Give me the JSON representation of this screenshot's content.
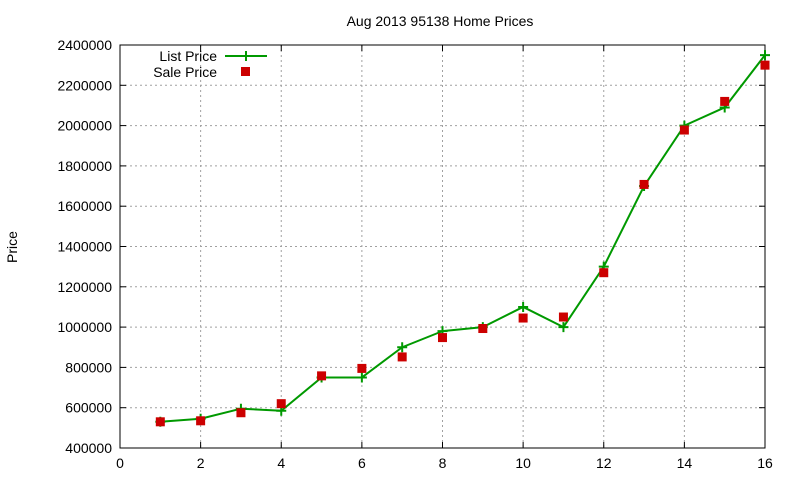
{
  "chart_data": {
    "type": "line",
    "title": "Aug 2013 95138 Home Prices",
    "xlabel": "",
    "ylabel": "Price",
    "xlim": [
      0,
      16
    ],
    "ylim": [
      400000,
      2400000
    ],
    "x_ticks": [
      0,
      2,
      4,
      6,
      8,
      10,
      12,
      14,
      16
    ],
    "y_ticks": [
      400000,
      600000,
      800000,
      1000000,
      1200000,
      1400000,
      1600000,
      1800000,
      2000000,
      2200000,
      2400000
    ],
    "x_tick_labels": [
      "0",
      "2",
      "4",
      "6",
      "8",
      "10",
      "12",
      "14",
      "16"
    ],
    "y_tick_labels": [
      "400000",
      "600000",
      "800000",
      "1000000",
      "1200000",
      "1400000",
      "1600000",
      "1800000",
      "2000000",
      "2200000",
      "2400000"
    ],
    "grid": true,
    "legend_position": "top-left",
    "series": [
      {
        "name": "List Price",
        "style": "line-with-plus",
        "color": "#009900",
        "x": [
          1,
          2,
          3,
          4,
          5,
          6,
          7,
          8,
          9,
          10,
          11,
          12,
          13,
          14,
          15,
          16
        ],
        "values": [
          530000,
          545000,
          595000,
          585000,
          750000,
          750000,
          900000,
          980000,
          1000000,
          1100000,
          1000000,
          1300000,
          1700000,
          2000000,
          2090000,
          2350000
        ]
      },
      {
        "name": "Sale Price",
        "style": "square-points",
        "color": "#cc0000",
        "x": [
          1,
          2,
          3,
          4,
          5,
          6,
          7,
          8,
          9,
          10,
          11,
          12,
          13,
          14,
          15,
          16
        ],
        "values": [
          530000,
          535000,
          575000,
          620000,
          758000,
          795000,
          852000,
          948000,
          993000,
          1045000,
          1050000,
          1270000,
          1708000,
          1978000,
          2120000,
          2300000
        ]
      }
    ]
  }
}
